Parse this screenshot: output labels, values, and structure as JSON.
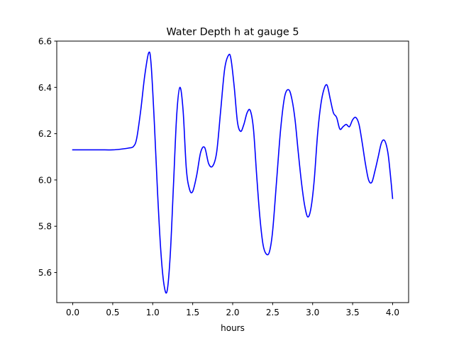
{
  "chart_data": {
    "type": "line",
    "title": "Water Depth h at gauge 5",
    "xlabel": "hours",
    "ylabel": "",
    "xlim": [
      -0.2,
      4.2
    ],
    "ylim": [
      5.47,
      6.6
    ],
    "xticks": [
      0.0,
      0.5,
      1.0,
      1.5,
      2.0,
      2.5,
      3.0,
      3.5,
      4.0
    ],
    "xtick_labels": [
      "0.0",
      "0.5",
      "1.0",
      "1.5",
      "2.0",
      "2.5",
      "3.0",
      "3.5",
      "4.0"
    ],
    "yticks": [
      5.6,
      5.8,
      6.0,
      6.2,
      6.4,
      6.6
    ],
    "ytick_labels": [
      "5.6",
      "5.8",
      "6.0",
      "6.2",
      "6.4",
      "6.6"
    ],
    "grid": false,
    "legend": "none",
    "series": [
      {
        "color": "#0000ff",
        "x": [
          0.0,
          0.2,
          0.4,
          0.5,
          0.6,
          0.7,
          0.76,
          0.8,
          0.85,
          0.9,
          0.95,
          0.98,
          1.02,
          1.06,
          1.1,
          1.14,
          1.18,
          1.22,
          1.26,
          1.3,
          1.34,
          1.38,
          1.42,
          1.46,
          1.5,
          1.55,
          1.6,
          1.65,
          1.7,
          1.75,
          1.8,
          1.85,
          1.9,
          1.95,
          1.98,
          2.02,
          2.06,
          2.1,
          2.14,
          2.18,
          2.22,
          2.26,
          2.3,
          2.34,
          2.38,
          2.42,
          2.46,
          2.5,
          2.55,
          2.6,
          2.65,
          2.7,
          2.74,
          2.78,
          2.82,
          2.86,
          2.9,
          2.94,
          2.98,
          3.02,
          3.06,
          3.1,
          3.14,
          3.18,
          3.22,
          3.26,
          3.3,
          3.34,
          3.38,
          3.42,
          3.46,
          3.5,
          3.54,
          3.58,
          3.62,
          3.66,
          3.7,
          3.74,
          3.78,
          3.82,
          3.86,
          3.9,
          3.94,
          3.97,
          4.0
        ],
        "y": [
          6.13,
          6.13,
          6.13,
          6.13,
          6.133,
          6.138,
          6.145,
          6.18,
          6.3,
          6.45,
          6.55,
          6.5,
          6.25,
          5.95,
          5.7,
          5.55,
          5.52,
          5.68,
          5.98,
          6.28,
          6.4,
          6.3,
          6.05,
          5.96,
          5.95,
          6.02,
          6.12,
          6.14,
          6.07,
          6.06,
          6.12,
          6.3,
          6.48,
          6.54,
          6.52,
          6.4,
          6.25,
          6.21,
          6.24,
          6.29,
          6.3,
          6.22,
          6.02,
          5.84,
          5.72,
          5.68,
          5.69,
          5.78,
          6.0,
          6.22,
          6.36,
          6.39,
          6.35,
          6.26,
          6.12,
          5.99,
          5.89,
          5.84,
          5.88,
          6.0,
          6.19,
          6.32,
          6.39,
          6.41,
          6.35,
          6.29,
          6.27,
          6.22,
          6.23,
          6.24,
          6.23,
          6.26,
          6.27,
          6.24,
          6.16,
          6.07,
          6.0,
          5.99,
          6.04,
          6.1,
          6.16,
          6.17,
          6.12,
          6.03,
          5.92
        ]
      }
    ]
  }
}
